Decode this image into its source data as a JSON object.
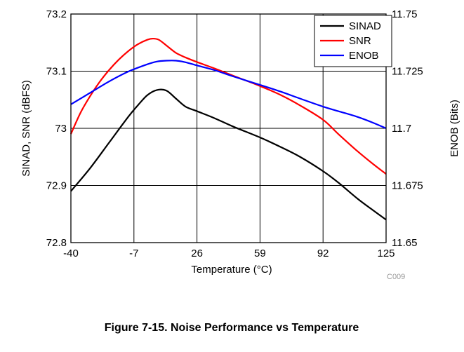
{
  "chart_data": {
    "type": "line",
    "caption": "Figure 7-15. Noise Performance vs Temperature",
    "xlabel": "Temperature (°C)",
    "ylabel_left": "SINAD, SNR (dBFS)",
    "ylabel_right": "ENOB (Bits)",
    "code": "C009",
    "xlim": [
      -40,
      125
    ],
    "ylim_left": [
      72.8,
      73.2
    ],
    "ylim_right": [
      11.65,
      11.75
    ],
    "xticks": [
      -40,
      -7,
      26,
      59,
      92,
      125
    ],
    "xtick_labels": [
      "-40",
      "-7",
      "26",
      "59",
      "92",
      "125"
    ],
    "yticks_left": [
      72.8,
      72.9,
      73,
      73.1,
      73.2
    ],
    "ytick_labels_left": [
      "72.8",
      "72.9",
      "73",
      "73.1",
      "73.2"
    ],
    "yticks_right": [
      11.65,
      11.675,
      11.7,
      11.725,
      11.75
    ],
    "ytick_labels_right": [
      "11.65",
      "11.675",
      "11.7",
      "11.725",
      "11.75"
    ],
    "grid": true,
    "legend_position": "top-right",
    "series": [
      {
        "name": "SINAD",
        "color": "#000000",
        "axis": "left",
        "x": [
          -40,
          -30,
          -20,
          -10,
          -5,
          0,
          5,
          10,
          15,
          20,
          26,
          35,
          45,
          59,
          70,
          80,
          92,
          100,
          110,
          118,
          125
        ],
        "y": [
          72.89,
          72.93,
          72.975,
          73.02,
          73.04,
          73.058,
          73.067,
          73.066,
          73.052,
          73.038,
          73.03,
          73.018,
          73.003,
          72.984,
          72.967,
          72.95,
          72.925,
          72.905,
          72.877,
          72.857,
          72.84
        ]
      },
      {
        "name": "SNR",
        "color": "#ff0000",
        "axis": "left",
        "x": [
          -40,
          -35,
          -30,
          -25,
          -20,
          -15,
          -10,
          -5,
          0,
          3,
          6,
          10,
          15,
          20,
          26,
          35,
          45,
          59,
          70,
          80,
          92,
          100,
          110,
          118,
          125
        ],
        "y": [
          72.99,
          73.027,
          73.056,
          73.081,
          73.102,
          73.12,
          73.135,
          73.147,
          73.155,
          73.157,
          73.155,
          73.145,
          73.132,
          73.124,
          73.116,
          73.105,
          73.092,
          73.074,
          73.058,
          73.04,
          73.015,
          72.99,
          72.96,
          72.938,
          72.92
        ]
      },
      {
        "name": "ENOB",
        "color": "#0000ff",
        "axis": "right",
        "x": [
          -40,
          -30,
          -20,
          -10,
          0,
          5,
          10,
          15,
          20,
          26,
          35,
          45,
          59,
          70,
          80,
          92,
          100,
          110,
          118,
          125
        ],
        "y": [
          11.7105,
          11.7155,
          11.7205,
          11.7248,
          11.728,
          11.7292,
          11.7296,
          11.7296,
          11.7289,
          11.7275,
          11.7255,
          11.7227,
          11.719,
          11.716,
          11.713,
          11.7095,
          11.7075,
          11.705,
          11.7025,
          11.7
        ]
      }
    ]
  }
}
